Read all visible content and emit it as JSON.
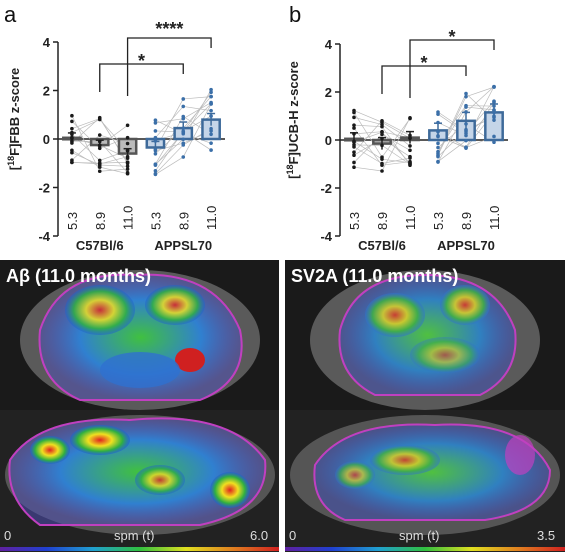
{
  "chart_data": [
    {
      "type": "bar",
      "panel": "a",
      "ylabel_pre": "[",
      "ylabel_sup": "18",
      "ylabel_post": "F]FBB z-score",
      "ylim": [
        -4,
        4
      ],
      "yticks": [
        -4,
        -2,
        0,
        2,
        4
      ],
      "groups": [
        "C57Bl/6",
        "APPSL70"
      ],
      "categories": [
        "5.3",
        "8.9",
        "11.0",
        "5.3",
        "8.9",
        "11.0"
      ],
      "values": [
        0.05,
        -0.25,
        -0.6,
        -0.35,
        0.45,
        0.8
      ],
      "errors": [
        0.2,
        0.2,
        0.2,
        0.25,
        0.25,
        0.25
      ],
      "significance": [
        {
          "from": 1,
          "to": 4,
          "label": "*"
        },
        {
          "from": 2,
          "to": 5,
          "label": "****"
        }
      ]
    },
    {
      "type": "bar",
      "panel": "b",
      "ylabel_pre": "[",
      "ylabel_sup": "18",
      "ylabel_post": "F]UCB-H z-score",
      "ylim": [
        -4,
        4
      ],
      "yticks": [
        -4,
        -2,
        0,
        2,
        4
      ],
      "groups": [
        "C57Bl/6",
        "APPSL70"
      ],
      "categories": [
        "5.3",
        "8.9",
        "11.0",
        "5.3",
        "8.9",
        "11.0"
      ],
      "values": [
        0.05,
        -0.15,
        0.1,
        0.4,
        0.8,
        1.15
      ],
      "errors": [
        0.25,
        0.25,
        0.25,
        0.3,
        0.35,
        0.35
      ],
      "significance": [
        {
          "from": 1,
          "to": 4,
          "label": "*"
        },
        {
          "from": 2,
          "to": 5,
          "label": "*"
        }
      ]
    }
  ],
  "images": [
    {
      "panel_title": "Aβ (11.0 months)",
      "cbar_min": "0",
      "cbar_label": "spm (t)",
      "cbar_max": "6.0"
    },
    {
      "panel_title": "SV2A (11.0 months)",
      "cbar_min": "0",
      "cbar_label": "spm (t)",
      "cbar_max": "3.5"
    }
  ],
  "colors": {
    "c57": "#555555",
    "app": "#3e6a9a",
    "app_fill": "#c5d5e8",
    "points": "#1a1a1a",
    "app_points": "#3b6fa8"
  }
}
